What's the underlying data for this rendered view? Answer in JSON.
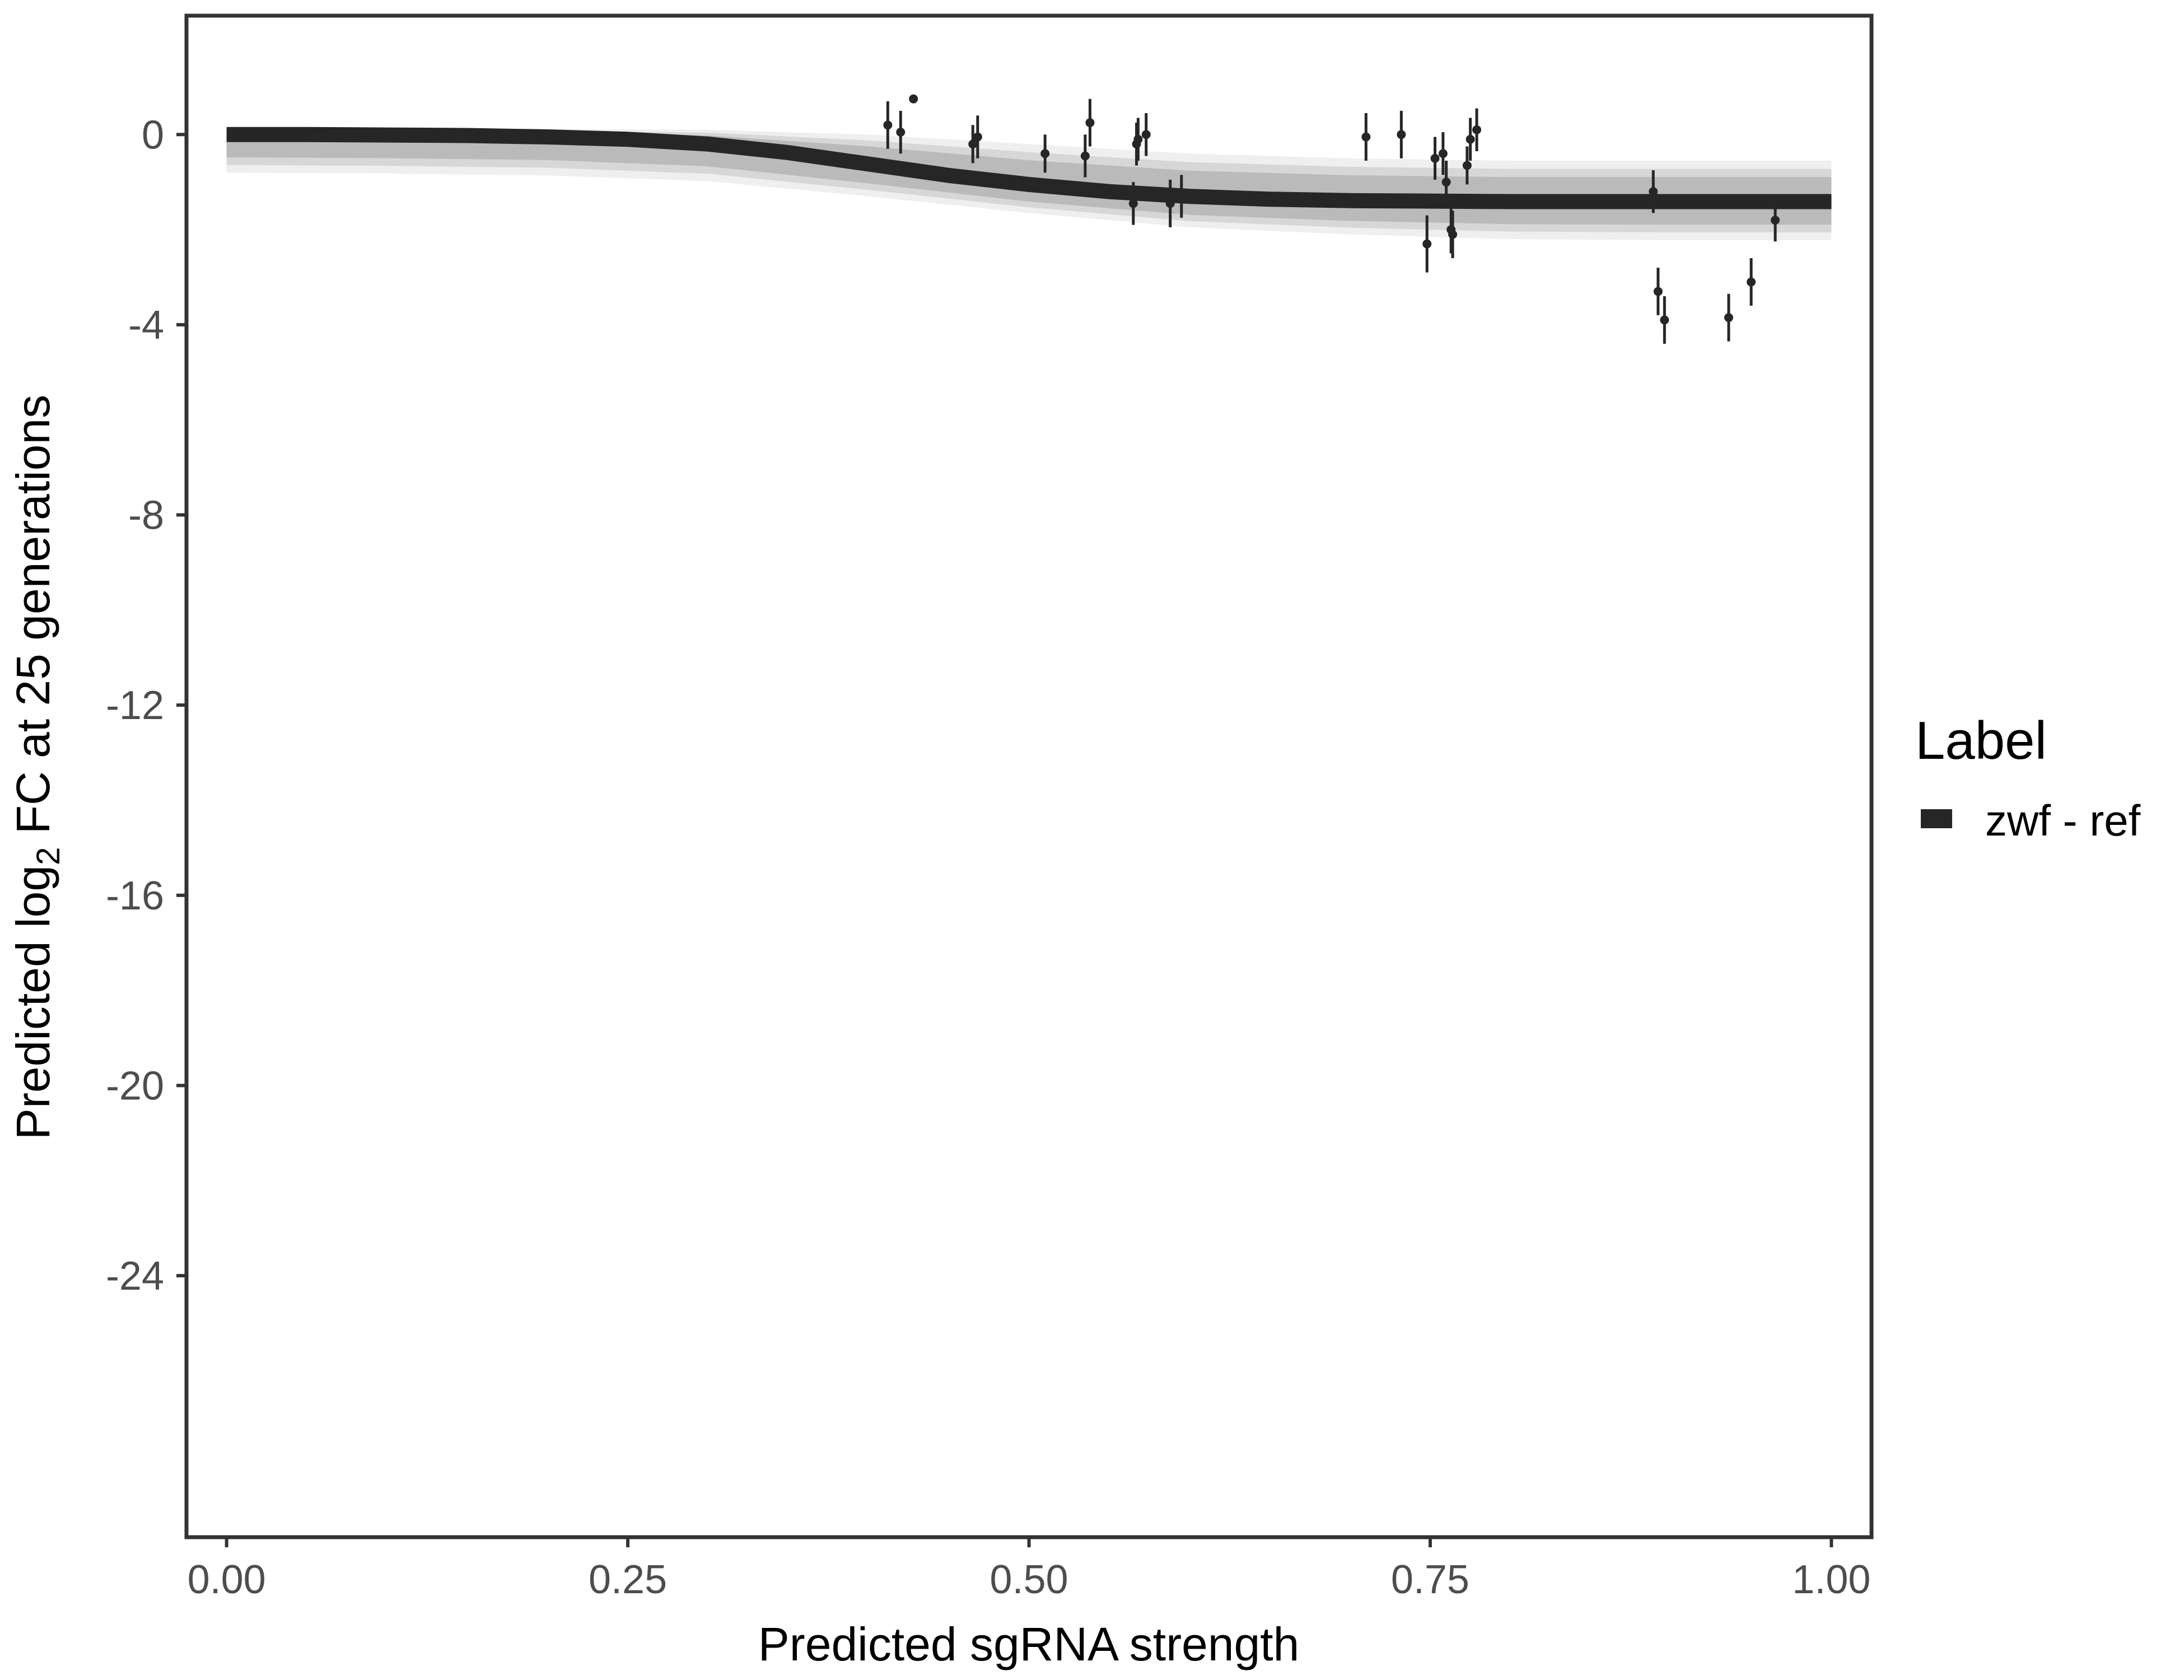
{
  "chart_data": {
    "type": "scatter",
    "xlabel": "Predicted sgRNA strength",
    "ylabel": {
      "prefix": "Predicted  log",
      "subscript": "2",
      "suffix": " FC at 25 generations"
    },
    "xlim": [
      -0.025,
      1.025
    ],
    "ylim": [
      -29.5,
      2.5
    ],
    "x_ticks": [
      0,
      0.25,
      0.5,
      0.75,
      1
    ],
    "x_tick_labels": [
      "0.00",
      "0.25",
      "0.50",
      "0.75",
      "1.00"
    ],
    "y_ticks": [
      0,
      -4,
      -8,
      -12,
      -16,
      -20,
      -24
    ],
    "y_tick_labels": [
      "0",
      "-4",
      "-8",
      "-12",
      "-16",
      "-20",
      "-24"
    ],
    "grid": false,
    "legend": {
      "title": "Label",
      "position": "right",
      "entries": [
        {
          "label": "zwf - ref",
          "color": "#262626"
        }
      ]
    },
    "fit_line": {
      "label": "zwf - ref",
      "color": "#262626",
      "x": [
        0,
        0.05,
        0.1,
        0.15,
        0.2,
        0.25,
        0.3,
        0.35,
        0.4,
        0.45,
        0.5,
        0.55,
        0.6,
        0.65,
        0.7,
        0.75,
        0.8,
        0.85,
        0.9,
        0.95,
        1.0
      ],
      "y": [
        0.0,
        0.0,
        -0.01,
        -0.02,
        -0.05,
        -0.1,
        -0.2,
        -0.38,
        -0.62,
        -0.86,
        -1.05,
        -1.2,
        -1.3,
        -1.36,
        -1.39,
        -1.4,
        -1.41,
        -1.41,
        -1.41,
        -1.41,
        -1.41
      ]
    },
    "uncertainty_band": {
      "color": "#a6a6a6",
      "x": [
        0,
        0.1,
        0.2,
        0.3,
        0.4,
        0.5,
        0.6,
        0.7,
        0.8,
        0.9,
        1.0
      ],
      "upper": [
        0.12,
        0.12,
        0.12,
        0.1,
        0.0,
        -0.2,
        -0.4,
        -0.5,
        -0.55,
        -0.55,
        -0.55
      ],
      "lower": [
        -0.8,
        -0.82,
        -0.86,
        -0.98,
        -1.3,
        -1.65,
        -1.95,
        -2.1,
        -2.2,
        -2.22,
        -2.22
      ]
    },
    "points": {
      "color": "#262626",
      "data": [
        {
          "x": 0.412,
          "y": 0.2,
          "err": 0.5
        },
        {
          "x": 0.42,
          "y": 0.05,
          "err": 0.45
        },
        {
          "x": 0.428,
          "y": 0.75,
          "err": 0.0
        },
        {
          "x": 0.465,
          "y": -0.2,
          "err": 0.4
        },
        {
          "x": 0.468,
          "y": -0.05,
          "err": 0.45
        },
        {
          "x": 0.51,
          "y": -0.4,
          "err": 0.4
        },
        {
          "x": 0.535,
          "y": -0.45,
          "err": 0.45
        },
        {
          "x": 0.538,
          "y": 0.25,
          "err": 0.5
        },
        {
          "x": 0.565,
          "y": -1.45,
          "err": 0.45
        },
        {
          "x": 0.567,
          "y": -0.2,
          "err": 0.45
        },
        {
          "x": 0.568,
          "y": -0.1,
          "err": 0.45
        },
        {
          "x": 0.573,
          "y": 0.0,
          "err": 0.45
        },
        {
          "x": 0.588,
          "y": -1.45,
          "err": 0.5
        },
        {
          "x": 0.595,
          "y": -1.3,
          "err": 0.45
        },
        {
          "x": 0.71,
          "y": -0.05,
          "err": 0.5
        },
        {
          "x": 0.732,
          "y": 0.0,
          "err": 0.5
        },
        {
          "x": 0.748,
          "y": -2.3,
          "err": 0.6
        },
        {
          "x": 0.753,
          "y": -0.5,
          "err": 0.45
        },
        {
          "x": 0.758,
          "y": -0.4,
          "err": 0.45
        },
        {
          "x": 0.76,
          "y": -1.0,
          "err": 0.45
        },
        {
          "x": 0.763,
          "y": -2.0,
          "err": 0.5
        },
        {
          "x": 0.764,
          "y": -2.1,
          "err": 0.5
        },
        {
          "x": 0.773,
          "y": -0.65,
          "err": 0.4
        },
        {
          "x": 0.775,
          "y": -0.1,
          "err": 0.45
        },
        {
          "x": 0.779,
          "y": 0.1,
          "err": 0.45
        },
        {
          "x": 0.889,
          "y": -1.2,
          "err": 0.45
        },
        {
          "x": 0.892,
          "y": -3.3,
          "err": 0.5
        },
        {
          "x": 0.896,
          "y": -3.9,
          "err": 0.5
        },
        {
          "x": 0.936,
          "y": -3.85,
          "err": 0.5
        },
        {
          "x": 0.95,
          "y": -3.1,
          "err": 0.5
        },
        {
          "x": 0.965,
          "y": -1.8,
          "err": 0.45
        }
      ]
    }
  }
}
